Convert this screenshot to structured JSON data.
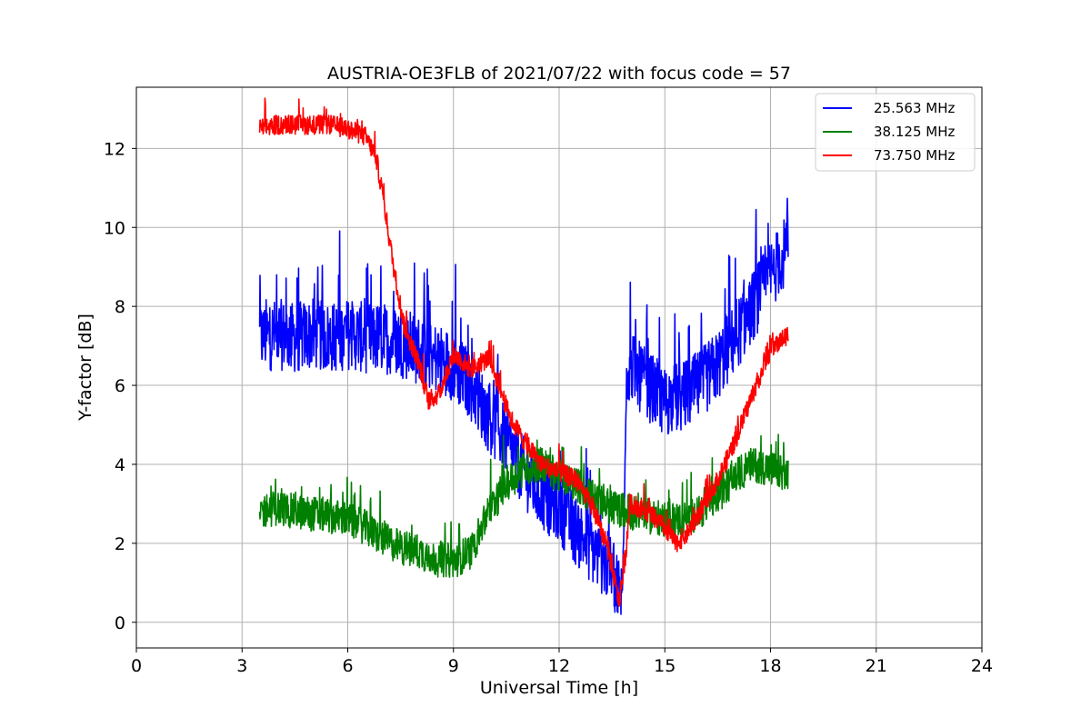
{
  "chart_data": {
    "type": "line",
    "title": "AUSTRIA-OE3FLB of 2021/07/22 with focus code = 57",
    "xlabel": "Universal Time [h]",
    "ylabel": "Y-factor [dB]",
    "xlim": [
      0,
      24
    ],
    "ylim": [
      -0.65,
      13.55
    ],
    "xticks": [
      0,
      3,
      6,
      9,
      12,
      15,
      18,
      21,
      24
    ],
    "yticks": [
      0,
      2,
      4,
      6,
      8,
      10,
      12
    ],
    "grid": true,
    "legend_position": "top-right",
    "series": [
      {
        "name": "25.563 MHz",
        "color": "#0000ff",
        "x": [
          3.5,
          4.0,
          4.5,
          5.0,
          5.5,
          6.0,
          6.5,
          7.0,
          7.5,
          8.0,
          8.5,
          9.0,
          9.5,
          10.0,
          10.5,
          11.0,
          11.5,
          12.0,
          12.5,
          13.0,
          13.5,
          13.8,
          13.9,
          14.0,
          14.5,
          15.0,
          15.5,
          16.0,
          16.5,
          17.0,
          17.5,
          18.0,
          18.5
        ],
        "y": [
          7.2,
          7.3,
          7.2,
          7.3,
          7.2,
          7.3,
          7.2,
          7.2,
          7.1,
          6.9,
          6.7,
          6.5,
          6.0,
          5.2,
          4.6,
          3.8,
          3.2,
          2.9,
          2.3,
          1.8,
          1.3,
          0.6,
          6.2,
          6.5,
          6.0,
          5.6,
          5.7,
          6.0,
          6.5,
          7.2,
          8.0,
          8.8,
          9.5
        ],
        "noise": 0.9
      },
      {
        "name": "38.125 MHz",
        "color": "#008000",
        "x": [
          3.5,
          4.0,
          4.5,
          5.0,
          5.5,
          6.0,
          6.5,
          7.0,
          7.5,
          8.0,
          8.5,
          9.0,
          9.5,
          10.0,
          10.5,
          11.0,
          11.5,
          12.0,
          12.5,
          13.0,
          13.5,
          14.0,
          14.5,
          15.0,
          15.5,
          16.0,
          16.5,
          17.0,
          17.5,
          18.0,
          18.5
        ],
        "y": [
          2.8,
          2.9,
          2.8,
          2.75,
          2.7,
          2.6,
          2.4,
          2.1,
          1.9,
          1.8,
          1.6,
          1.55,
          1.8,
          2.8,
          3.5,
          3.9,
          4.0,
          3.7,
          3.5,
          3.1,
          2.9,
          2.8,
          2.7,
          2.6,
          2.6,
          2.8,
          3.2,
          3.7,
          4.0,
          3.9,
          3.7
        ],
        "noise": 0.45
      },
      {
        "name": "73.750 MHz",
        "color": "#ff0000",
        "x": [
          3.5,
          4.0,
          4.5,
          5.0,
          5.5,
          6.0,
          6.5,
          6.8,
          7.0,
          7.3,
          7.6,
          8.0,
          8.3,
          8.6,
          9.0,
          9.5,
          10.0,
          10.3,
          10.6,
          11.0,
          11.5,
          12.0,
          12.5,
          13.0,
          13.4,
          13.7,
          13.9,
          14.0,
          14.5,
          15.0,
          15.3,
          15.6,
          16.0,
          16.5,
          17.0,
          17.5,
          18.0,
          18.5
        ],
        "y": [
          12.5,
          12.6,
          12.6,
          12.6,
          12.6,
          12.5,
          12.3,
          11.8,
          10.8,
          9.0,
          7.5,
          6.6,
          5.6,
          5.8,
          6.8,
          6.4,
          6.7,
          6.0,
          5.2,
          4.6,
          4.0,
          3.8,
          3.6,
          2.8,
          1.8,
          0.5,
          1.8,
          3.0,
          2.8,
          2.4,
          2.0,
          2.2,
          2.8,
          3.6,
          4.6,
          5.8,
          6.9,
          7.3
        ],
        "noise": 0.25
      }
    ]
  }
}
